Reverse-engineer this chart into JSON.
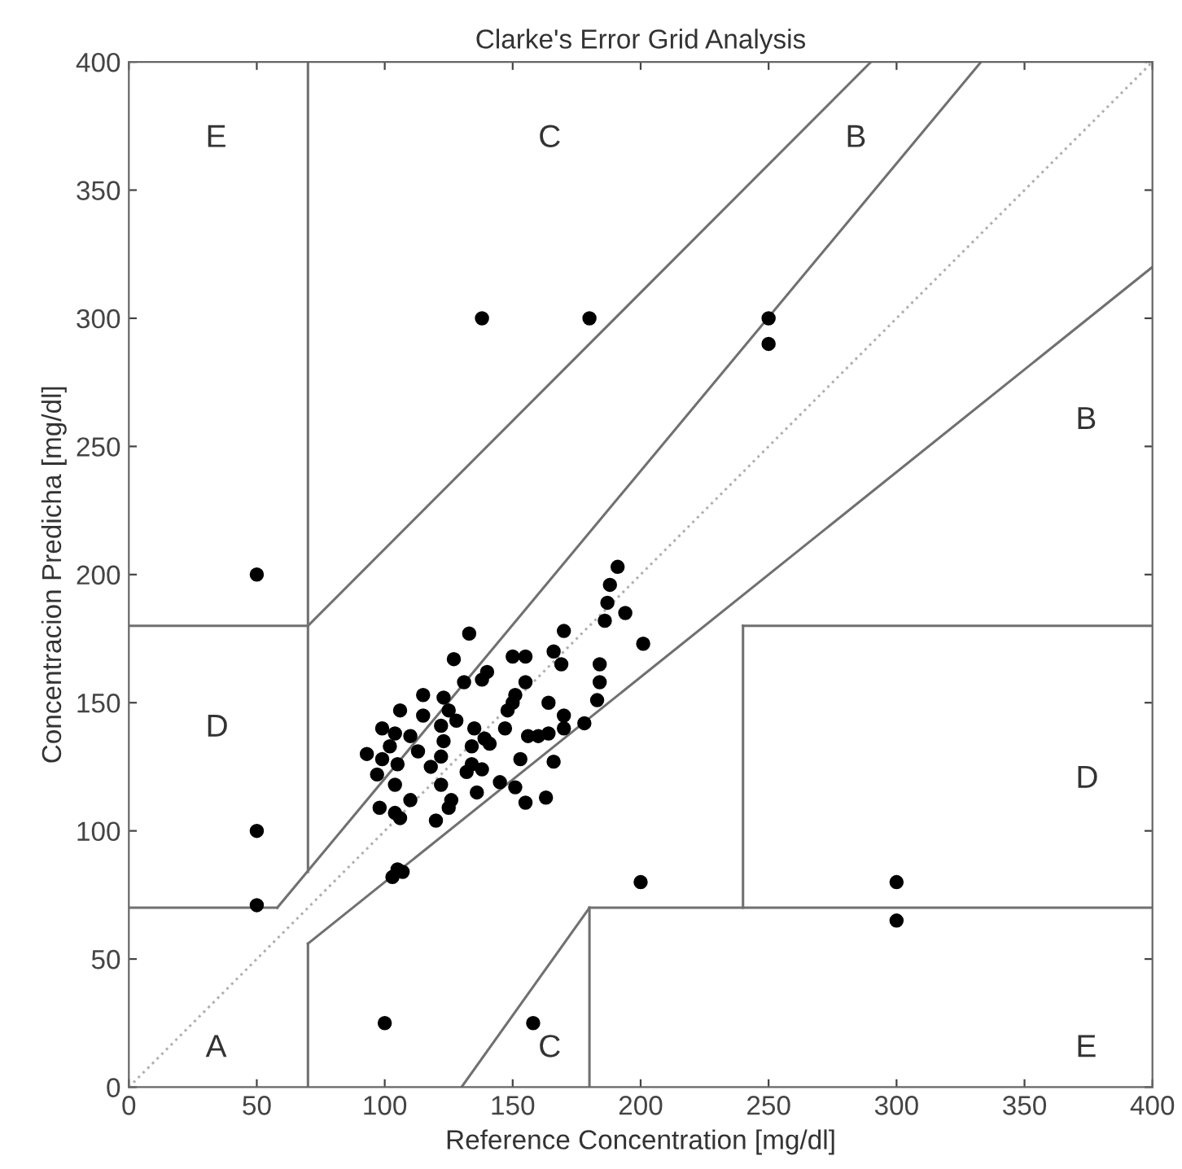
{
  "chart_data": {
    "type": "scatter",
    "title": "Clarke's Error Grid Analysis",
    "xlabel": "Reference Concentration [mg/dl]",
    "ylabel": "Concentracion Predicha [mg/dl]",
    "xlim": [
      0,
      400
    ],
    "ylim": [
      0,
      400
    ],
    "xticks": [
      0,
      50,
      100,
      150,
      200,
      250,
      300,
      350,
      400
    ],
    "yticks": [
      0,
      50,
      100,
      150,
      200,
      250,
      300,
      350,
      400
    ],
    "grid": false,
    "marker": "none",
    "series": [
      {
        "type": "line",
        "color": "#b0b0b0",
        "line_style": "dotted",
        "x": [
          0,
          400
        ],
        "values": [
          0,
          400
        ]
      },
      {
        "type": "line",
        "color": "#707070",
        "line_style": "solid",
        "x": [
          0,
          58
        ],
        "values": [
          70,
          70
        ]
      },
      {
        "type": "line",
        "color": "#707070",
        "line_style": "solid",
        "x": [
          58,
          333
        ],
        "values": [
          70,
          400
        ]
      },
      {
        "type": "line",
        "color": "#707070",
        "line_style": "solid",
        "x": [
          70,
          70
        ],
        "values": [
          84,
          400
        ]
      },
      {
        "type": "line",
        "color": "#707070",
        "line_style": "solid",
        "x": [
          0,
          70
        ],
        "values": [
          180,
          180
        ]
      },
      {
        "type": "line",
        "color": "#707070",
        "line_style": "solid",
        "x": [
          70,
          290
        ],
        "values": [
          180,
          400
        ]
      },
      {
        "type": "line",
        "color": "#707070",
        "line_style": "solid",
        "x": [
          70,
          70
        ],
        "values": [
          0,
          56
        ]
      },
      {
        "type": "line",
        "color": "#707070",
        "line_style": "solid",
        "x": [
          70,
          400
        ],
        "values": [
          56,
          320
        ]
      },
      {
        "type": "line",
        "color": "#707070",
        "line_style": "solid",
        "x": [
          180,
          180
        ],
        "values": [
          0,
          70
        ]
      },
      {
        "type": "line",
        "color": "#707070",
        "line_style": "solid",
        "x": [
          180,
          400
        ],
        "values": [
          70,
          70
        ]
      },
      {
        "type": "line",
        "color": "#707070",
        "line_style": "solid",
        "x": [
          240,
          240
        ],
        "values": [
          70,
          180
        ]
      },
      {
        "type": "line",
        "color": "#707070",
        "line_style": "solid",
        "x": [
          240,
          400
        ],
        "values": [
          180,
          180
        ]
      },
      {
        "type": "line",
        "color": "#707070",
        "line_style": "solid",
        "x": [
          130,
          180
        ],
        "values": [
          0,
          70
        ]
      },
      {
        "color": "#000000",
        "marker": "circle",
        "x": [
          50,
          50,
          50,
          138,
          180,
          250,
          250,
          103,
          107,
          105,
          100,
          158,
          200,
          300,
          300,
          191,
          188,
          187,
          186,
          194,
          201,
          133,
          170,
          127,
          150,
          155,
          166,
          169,
          140,
          138,
          131,
          184,
          184,
          183,
          155,
          151,
          115,
          123,
          148,
          150,
          164,
          106,
          115,
          125,
          128,
          170,
          178,
          99,
          104,
          122,
          123,
          135,
          139,
          147,
          156,
          160,
          164,
          170,
          110,
          102,
          93,
          99,
          105,
          113,
          122,
          134,
          141,
          134,
          138,
          132,
          153,
          166,
          118,
          97,
          104,
          122,
          145,
          151,
          136,
          163,
          155,
          110,
          126,
          125,
          98,
          104,
          106,
          120
        ],
        "values": [
          200,
          100,
          71,
          300,
          300,
          300,
          290,
          82,
          84,
          85,
          25,
          25,
          80,
          80,
          65,
          203,
          196,
          189,
          182,
          185,
          173,
          177,
          178,
          167,
          168,
          168,
          170,
          165,
          162,
          159,
          158,
          165,
          158,
          151,
          158,
          153,
          153,
          152,
          147,
          150,
          150,
          147,
          145,
          147,
          143,
          145,
          142,
          140,
          138,
          141,
          135,
          140,
          136,
          140,
          137,
          137,
          138,
          140,
          137,
          133,
          130,
          128,
          126,
          131,
          129,
          133,
          134,
          126,
          124,
          123,
          128,
          127,
          125,
          122,
          118,
          118,
          119,
          117,
          115,
          113,
          111,
          112,
          112,
          109,
          109,
          107,
          105,
          104
        ]
      }
    ],
    "annotations": [
      "A",
      "B",
      "B",
      "C",
      "C",
      "D",
      "D",
      "E",
      "E"
    ]
  }
}
